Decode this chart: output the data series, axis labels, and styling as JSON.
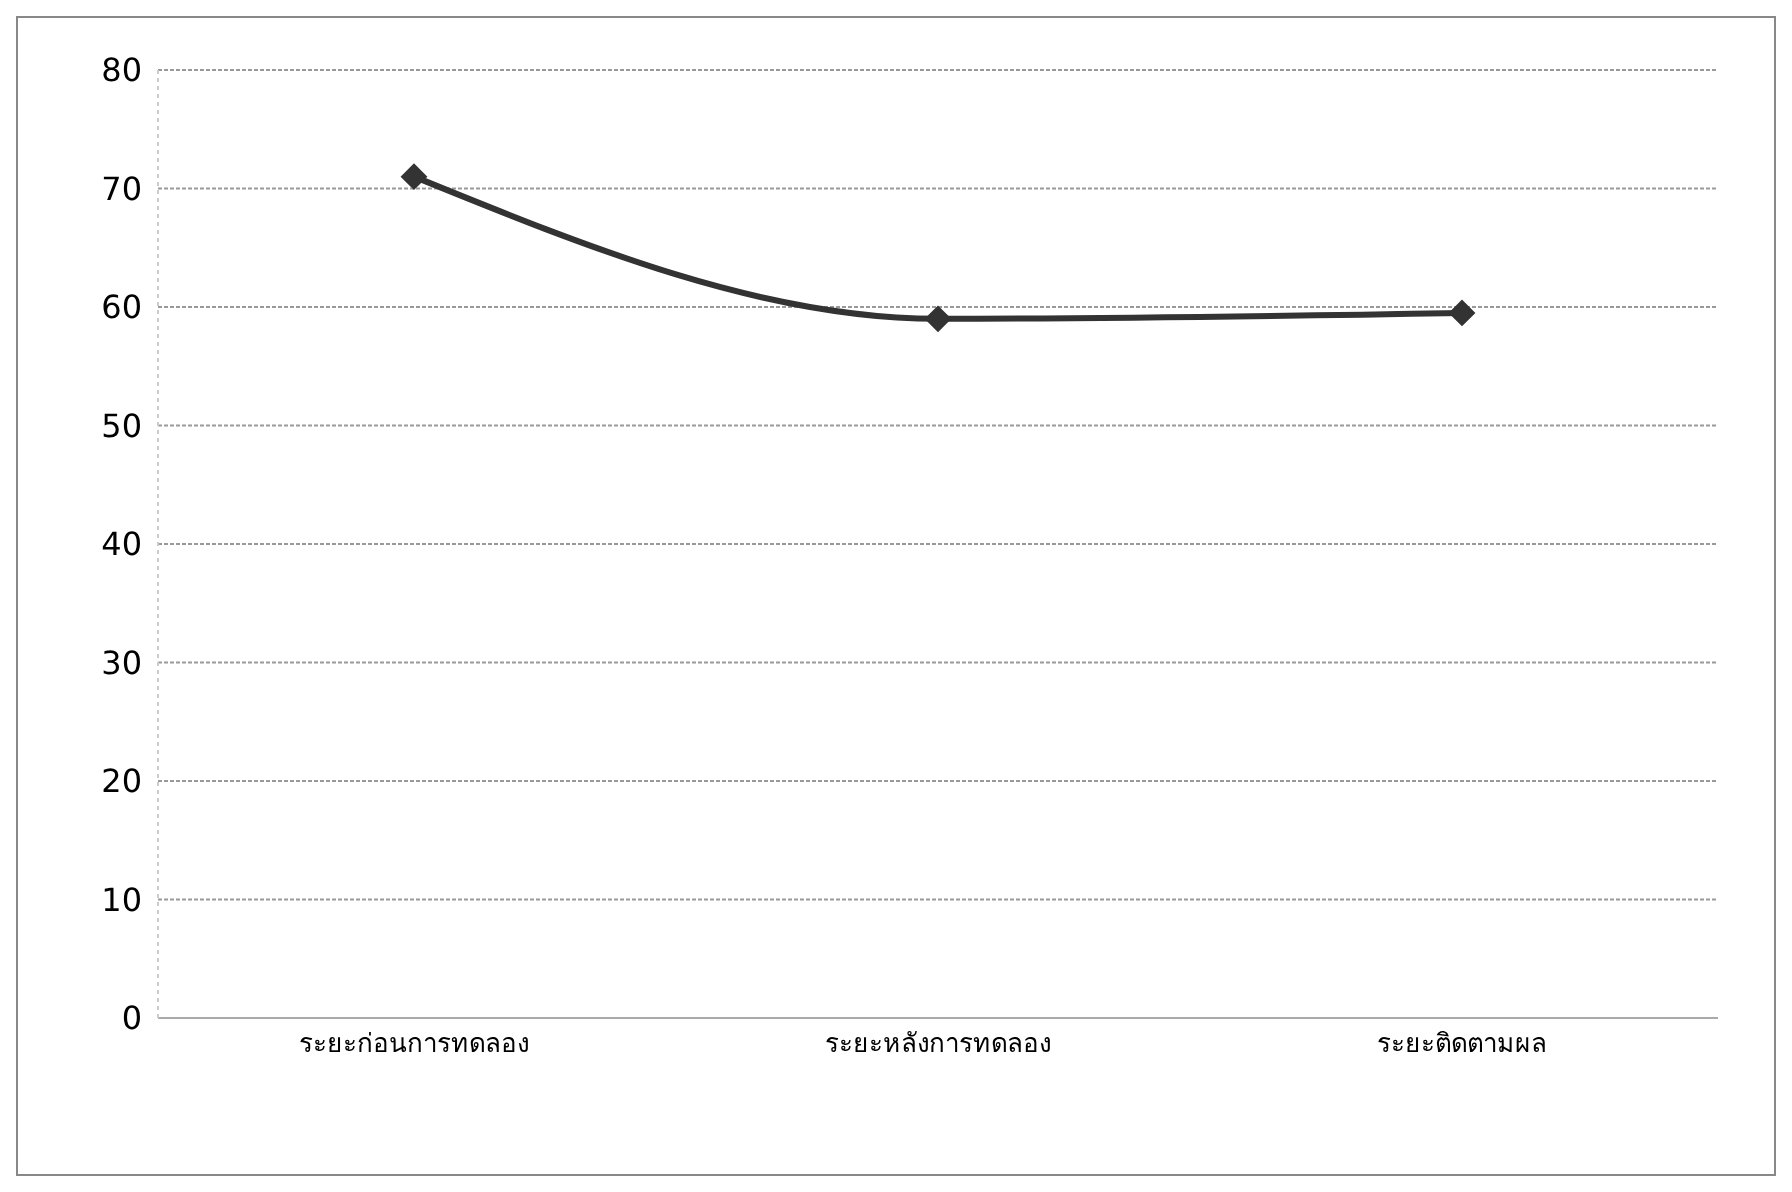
{
  "chart_data": {
    "type": "line",
    "categories": [
      "ระยะก่อนการทดลอง",
      "ระยะหลังการทดลอง",
      "ระยะติดตามผล"
    ],
    "series": [
      {
        "color": "#333333",
        "values": [
          71,
          59,
          59.5
        ]
      }
    ],
    "ylim": [
      0,
      80
    ],
    "yticks": [
      0,
      10,
      20,
      30,
      40,
      50,
      60,
      70,
      80
    ],
    "grid": "y",
    "marker": "diamond",
    "line_style": "solid"
  }
}
